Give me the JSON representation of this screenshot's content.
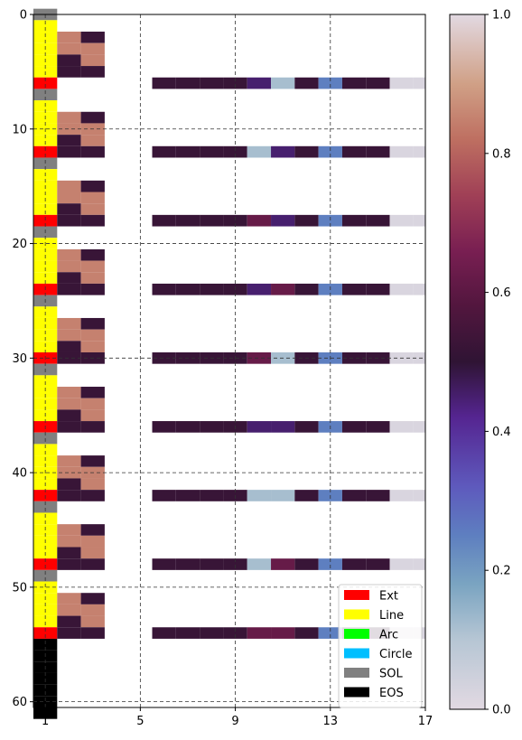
{
  "chart_data": {
    "type": "heatmap",
    "x_ticks": [
      "1",
      "5",
      "9",
      "13",
      "17"
    ],
    "y_ticks": [
      "0",
      "10",
      "20",
      "30",
      "40",
      "50",
      "60"
    ],
    "xlim": [
      0.5,
      17.0
    ],
    "ylim": [
      60.5,
      0.0
    ],
    "grid": true,
    "colormap_name": "twilight (upper half)",
    "colorbar": {
      "ticks": [
        "0.0",
        "0.2",
        "0.4",
        "0.6",
        "0.8",
        "1.0"
      ],
      "range": [
        0.0,
        1.0
      ]
    },
    "command_colors": {
      "Ext": "#ff0000",
      "Line": "#ffff00",
      "Arc": "#00ff00",
      "Circle": "#00bfff",
      "SOL": "#808080",
      "EOS": "#000000"
    },
    "legend": {
      "position": "lower right",
      "entries": [
        {
          "label": "Ext",
          "color": "#ff0000"
        },
        {
          "label": "Line",
          "color": "#ffff00"
        },
        {
          "label": "Arc",
          "color": "#00ff00"
        },
        {
          "label": "Circle",
          "color": "#00bfff"
        },
        {
          "label": "SOL",
          "color": "#808080"
        },
        {
          "label": "EOS",
          "color": "#000000"
        }
      ]
    },
    "command_column": [
      "SOL",
      "Line",
      "Line",
      "Line",
      "Line",
      "Line",
      "Ext",
      "SOL",
      "Line",
      "Line",
      "Line",
      "Line",
      "Ext",
      "SOL",
      "Line",
      "Line",
      "Line",
      "Line",
      "Ext",
      "SOL",
      "Line",
      "Line",
      "Line",
      "Line",
      "Ext",
      "SOL",
      "Line",
      "Line",
      "Line",
      "Line",
      "Ext",
      "SOL",
      "Line",
      "Line",
      "Line",
      "Line",
      "Ext",
      "SOL",
      "Line",
      "Line",
      "Line",
      "Line",
      "Ext",
      "SOL",
      "Line",
      "Line",
      "Line",
      "Line",
      "Ext",
      "SOL",
      "Line",
      "Line",
      "Line",
      "Line",
      "Ext",
      "EOS",
      "EOS",
      "EOS",
      "EOS",
      "EOS",
      "EOS",
      "EOS"
    ],
    "line_params_pattern": [
      [
        0.85,
        0.52
      ],
      [
        0.85,
        0.85
      ],
      [
        0.52,
        0.85
      ],
      [
        0.52,
        0.52
      ]
    ],
    "line_block_starts": [
      1,
      8,
      14,
      20,
      26,
      32,
      38,
      44,
      50
    ],
    "ext_rows": [
      {
        "row": 6,
        "values": [
          0.52,
          0.52,
          0.52,
          0.52,
          0.45,
          0.12,
          0.52,
          0.25,
          0.52,
          0.52,
          0.02,
          0.02
        ]
      },
      {
        "row": 12,
        "values": [
          0.52,
          0.52,
          0.52,
          0.52,
          0.12,
          0.45,
          0.52,
          0.25,
          0.52,
          0.52,
          0.02,
          0.02
        ]
      },
      {
        "row": 18,
        "values": [
          0.52,
          0.52,
          0.52,
          0.52,
          0.62,
          0.45,
          0.52,
          0.25,
          0.52,
          0.52,
          0.02,
          0.02
        ]
      },
      {
        "row": 24,
        "values": [
          0.52,
          0.52,
          0.52,
          0.52,
          0.45,
          0.62,
          0.52,
          0.25,
          0.52,
          0.52,
          0.02,
          0.02
        ]
      },
      {
        "row": 30,
        "values": [
          0.52,
          0.52,
          0.52,
          0.52,
          0.62,
          0.12,
          0.52,
          0.25,
          0.52,
          0.52,
          0.02,
          0.02
        ]
      },
      {
        "row": 36,
        "values": [
          0.52,
          0.52,
          0.52,
          0.52,
          0.45,
          0.45,
          0.52,
          0.25,
          0.52,
          0.52,
          0.02,
          0.02
        ]
      },
      {
        "row": 42,
        "values": [
          0.52,
          0.52,
          0.52,
          0.52,
          0.12,
          0.12,
          0.52,
          0.25,
          0.52,
          0.52,
          0.02,
          0.02
        ]
      },
      {
        "row": 48,
        "values": [
          0.52,
          0.52,
          0.52,
          0.52,
          0.12,
          0.62,
          0.52,
          0.25,
          0.52,
          0.52,
          0.02,
          0.02
        ]
      },
      {
        "row": 54,
        "values": [
          0.52,
          0.52,
          0.52,
          0.52,
          0.62,
          0.62,
          0.52,
          0.25,
          0.52,
          0.52,
          0.02,
          0.02
        ]
      }
    ],
    "ext_first_column": 5
  }
}
